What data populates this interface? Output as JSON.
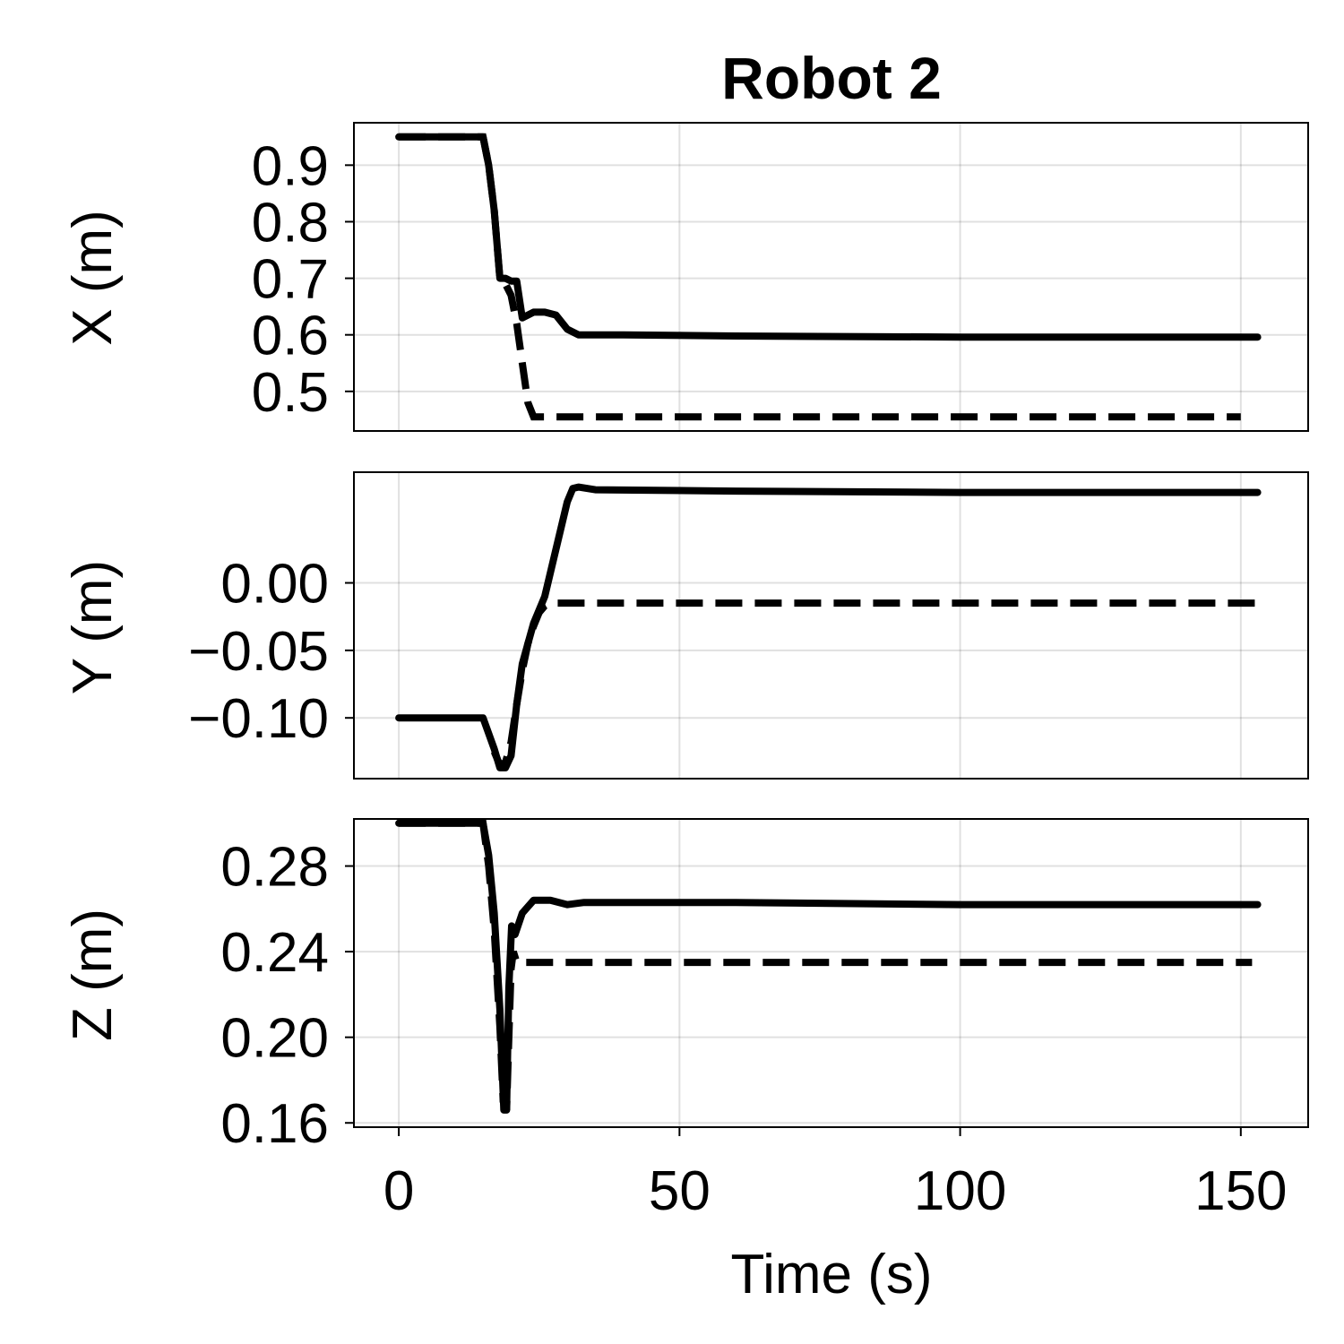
{
  "chart_data": {
    "type": "line",
    "title": "Robot 2",
    "xlabel": "Time (s)",
    "xlim": [
      -8,
      162
    ],
    "x_ticks": [
      0,
      50,
      100,
      150
    ],
    "x_tick_labels": [
      "0",
      "50",
      "100",
      "150"
    ],
    "grid": true,
    "subplots": [
      {
        "id": "x",
        "ylabel": "X (m)",
        "ylim": [
          0.43,
          0.975
        ],
        "y_ticks": [
          0.5,
          0.6,
          0.7,
          0.8,
          0.9
        ],
        "y_tick_labels": [
          "0.5",
          "0.6",
          "0.7",
          "0.8",
          "0.9"
        ],
        "series": [
          {
            "style": "solid",
            "x": [
              0,
              15,
              16,
              17,
              18,
              19,
              20,
              21,
              22,
              24,
              26,
              28,
              30,
              32,
              40,
              60,
              100,
              153
            ],
            "y": [
              0.95,
              0.95,
              0.9,
              0.82,
              0.7,
              0.7,
              0.695,
              0.695,
              0.63,
              0.64,
              0.64,
              0.635,
              0.61,
              0.6,
              0.6,
              0.598,
              0.596,
              0.596
            ]
          },
          {
            "style": "dashed",
            "x": [
              0,
              15,
              16,
              17,
              18,
              19,
              20,
              21,
              22,
              23,
              24,
              150
            ],
            "y": [
              0.95,
              0.95,
              0.9,
              0.82,
              0.7,
              0.69,
              0.67,
              0.62,
              0.55,
              0.48,
              0.455,
              0.455
            ]
          }
        ]
      },
      {
        "id": "y",
        "ylabel": "Y (m)",
        "ylim": [
          -0.145,
          0.082
        ],
        "y_ticks": [
          -0.1,
          -0.05,
          0.0
        ],
        "y_tick_labels": [
          "−0.10",
          "−0.05",
          "0.00"
        ],
        "series": [
          {
            "style": "solid",
            "x": [
              0,
              15,
              17,
              18,
              19,
              20,
              21,
              22,
              24,
              26,
              28,
              30,
              31,
              32,
              35,
              60,
              100,
              153
            ],
            "y": [
              -0.1,
              -0.1,
              -0.123,
              -0.137,
              -0.137,
              -0.128,
              -0.09,
              -0.06,
              -0.03,
              -0.01,
              0.025,
              0.06,
              0.07,
              0.071,
              0.069,
              0.068,
              0.067,
              0.067
            ]
          },
          {
            "style": "dashed",
            "x": [
              17,
              18,
              19,
              20,
              21,
              22,
              23,
              24,
              25,
              26,
              27,
              153
            ],
            "y": [
              -0.125,
              -0.135,
              -0.133,
              -0.118,
              -0.09,
              -0.065,
              -0.045,
              -0.032,
              -0.022,
              -0.017,
              -0.015,
              -0.015
            ]
          }
        ]
      },
      {
        "id": "z",
        "ylabel": "Z (m)",
        "ylim": [
          0.158,
          0.302
        ],
        "y_ticks": [
          0.16,
          0.2,
          0.24,
          0.28
        ],
        "y_tick_labels": [
          "0.16",
          "0.20",
          "0.24",
          "0.28"
        ],
        "series": [
          {
            "style": "solid",
            "x": [
              0,
              15,
              16,
              17,
              18,
              18.7,
              19.2,
              19.6,
              20.1,
              20.7,
              22,
              24,
              27,
              30,
              33,
              60,
              100,
              153
            ],
            "y": [
              0.3,
              0.3,
              0.285,
              0.258,
              0.213,
              0.166,
              0.166,
              0.223,
              0.252,
              0.248,
              0.258,
              0.264,
              0.264,
              0.262,
              0.263,
              0.263,
              0.262,
              0.262
            ]
          },
          {
            "style": "dashed",
            "x": [
              0,
              15,
              16,
              17,
              18,
              18.6,
              19.2,
              19.6,
              20,
              20.4,
              21,
              152
            ],
            "y": [
              0.3,
              0.3,
              0.28,
              0.25,
              0.205,
              0.17,
              0.166,
              0.2,
              0.232,
              0.24,
              0.235,
              0.235
            ]
          }
        ]
      }
    ]
  }
}
